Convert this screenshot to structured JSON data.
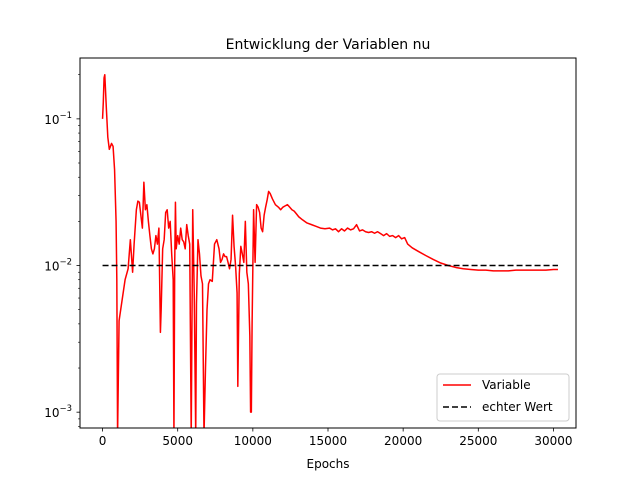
{
  "chart_data": {
    "type": "line",
    "title": "Entwicklung der Variablen nu",
    "xlabel": "Epochs",
    "ylabel": "",
    "yscale": "log",
    "xlim": [
      -1500,
      31500
    ],
    "ylim": [
      0.00078,
      0.26
    ],
    "x_ticks": [
      0,
      5000,
      10000,
      15000,
      20000,
      25000,
      30000
    ],
    "x_tick_labels": [
      "0",
      "5000",
      "10000",
      "15000",
      "20000",
      "25000",
      "30000"
    ],
    "y_ticks": [
      0.001,
      0.01,
      0.1
    ],
    "y_tick_labels": [
      {
        "base": "10",
        "exp": "−3"
      },
      {
        "base": "10",
        "exp": "−2"
      },
      {
        "base": "10",
        "exp": "−1"
      }
    ],
    "grid": false,
    "legend_position": "lower right",
    "series": [
      {
        "name": "Variable",
        "color": "#ff0000",
        "style": "solid",
        "points": [
          [
            0,
            0.1
          ],
          [
            50,
            0.13
          ],
          [
            100,
            0.19
          ],
          [
            150,
            0.2
          ],
          [
            250,
            0.12
          ],
          [
            350,
            0.075
          ],
          [
            450,
            0.062
          ],
          [
            600,
            0.068
          ],
          [
            700,
            0.065
          ],
          [
            800,
            0.045
          ],
          [
            900,
            0.02
          ],
          [
            950,
            0.008
          ],
          [
            1000,
            0.0007
          ],
          [
            1100,
            0.0042
          ],
          [
            1300,
            0.0058
          ],
          [
            1500,
            0.008
          ],
          [
            1700,
            0.0095
          ],
          [
            1850,
            0.015
          ],
          [
            2000,
            0.009
          ],
          [
            2100,
            0.014
          ],
          [
            2250,
            0.024
          ],
          [
            2350,
            0.0275
          ],
          [
            2450,
            0.027
          ],
          [
            2550,
            0.022
          ],
          [
            2650,
            0.018
          ],
          [
            2750,
            0.037
          ],
          [
            2850,
            0.024
          ],
          [
            2950,
            0.026
          ],
          [
            3050,
            0.02
          ],
          [
            3150,
            0.016
          ],
          [
            3250,
            0.013
          ],
          [
            3350,
            0.012
          ],
          [
            3450,
            0.013
          ],
          [
            3550,
            0.016
          ],
          [
            3650,
            0.014
          ],
          [
            3750,
            0.018
          ],
          [
            3850,
            0.0035
          ],
          [
            3900,
            0.005
          ],
          [
            4000,
            0.013
          ],
          [
            4100,
            0.015
          ],
          [
            4200,
            0.023
          ],
          [
            4300,
            0.024
          ],
          [
            4400,
            0.018
          ],
          [
            4500,
            0.02
          ],
          [
            4600,
            0.012
          ],
          [
            4700,
            0.008
          ],
          [
            4750,
            0.0007
          ],
          [
            4800,
            0.01
          ],
          [
            4850,
            0.027
          ],
          [
            4900,
            0.013
          ],
          [
            5000,
            0.016
          ],
          [
            5100,
            0.014
          ],
          [
            5200,
            0.018
          ],
          [
            5300,
            0.015
          ],
          [
            5400,
            0.0145
          ],
          [
            5500,
            0.013
          ],
          [
            5600,
            0.019
          ],
          [
            5700,
            0.016
          ],
          [
            5800,
            0.014
          ],
          [
            5900,
            0.0007
          ],
          [
            6000,
            0.024
          ],
          [
            6100,
            0.0065
          ],
          [
            6200,
            0.0007
          ],
          [
            6250,
            0.0055
          ],
          [
            6350,
            0.015
          ],
          [
            6450,
            0.012
          ],
          [
            6550,
            0.0085
          ],
          [
            6650,
            0.0075
          ],
          [
            6750,
            0.0007
          ],
          [
            6850,
            0.002
          ],
          [
            6950,
            0.005
          ],
          [
            7050,
            0.0075
          ],
          [
            7150,
            0.008
          ],
          [
            7300,
            0.0078
          ],
          [
            7450,
            0.014
          ],
          [
            7600,
            0.015
          ],
          [
            7750,
            0.013
          ],
          [
            7850,
            0.0105
          ],
          [
            7950,
            0.011
          ],
          [
            8050,
            0.012
          ],
          [
            8150,
            0.0115
          ],
          [
            8250,
            0.0115
          ],
          [
            8350,
            0.0105
          ],
          [
            8450,
            0.0095
          ],
          [
            8550,
            0.011
          ],
          [
            8650,
            0.022
          ],
          [
            8750,
            0.0135
          ],
          [
            8850,
            0.01
          ],
          [
            8950,
            0.0065
          ],
          [
            9000,
            0.0015
          ],
          [
            9100,
            0.0088
          ],
          [
            9200,
            0.0135
          ],
          [
            9300,
            0.012
          ],
          [
            9400,
            0.0105
          ],
          [
            9500,
            0.02
          ],
          [
            9600,
            0.009
          ],
          [
            9700,
            0.0075
          ],
          [
            9800,
            0.0033
          ],
          [
            9850,
            0.001
          ],
          [
            9900,
            0.001
          ],
          [
            9950,
            0.004
          ],
          [
            10050,
            0.024
          ],
          [
            10150,
            0.0105
          ],
          [
            10250,
            0.026
          ],
          [
            10350,
            0.025
          ],
          [
            10450,
            0.023
          ],
          [
            10550,
            0.018
          ],
          [
            10650,
            0.017
          ],
          [
            10750,
            0.022
          ],
          [
            10850,
            0.025
          ],
          [
            10950,
            0.028
          ],
          [
            11050,
            0.032
          ],
          [
            11150,
            0.031
          ],
          [
            11300,
            0.0285
          ],
          [
            11500,
            0.026
          ],
          [
            11700,
            0.025
          ],
          [
            11850,
            0.024
          ],
          [
            12000,
            0.025
          ],
          [
            12150,
            0.0255
          ],
          [
            12300,
            0.026
          ],
          [
            12450,
            0.025
          ],
          [
            12600,
            0.024
          ],
          [
            12750,
            0.0235
          ],
          [
            12900,
            0.0225
          ],
          [
            13050,
            0.0215
          ],
          [
            13300,
            0.0205
          ],
          [
            13600,
            0.0195
          ],
          [
            13900,
            0.019
          ],
          [
            14200,
            0.0185
          ],
          [
            14500,
            0.018
          ],
          [
            14800,
            0.0178
          ],
          [
            15100,
            0.018
          ],
          [
            15300,
            0.0175
          ],
          [
            15500,
            0.0178
          ],
          [
            15700,
            0.017
          ],
          [
            15900,
            0.0178
          ],
          [
            16100,
            0.0172
          ],
          [
            16300,
            0.018
          ],
          [
            16500,
            0.0175
          ],
          [
            16700,
            0.0178
          ],
          [
            16900,
            0.019
          ],
          [
            17100,
            0.0172
          ],
          [
            17300,
            0.0175
          ],
          [
            17500,
            0.017
          ],
          [
            17700,
            0.0168
          ],
          [
            17900,
            0.017
          ],
          [
            18100,
            0.0166
          ],
          [
            18300,
            0.017
          ],
          [
            18500,
            0.0165
          ],
          [
            18700,
            0.016
          ],
          [
            18900,
            0.0165
          ],
          [
            19100,
            0.0158
          ],
          [
            19300,
            0.016
          ],
          [
            19500,
            0.0155
          ],
          [
            19700,
            0.016
          ],
          [
            19900,
            0.0152
          ],
          [
            20100,
            0.0155
          ],
          [
            20300,
            0.014
          ],
          [
            20600,
            0.0132
          ],
          [
            21000,
            0.0125
          ],
          [
            21500,
            0.0117
          ],
          [
            22000,
            0.011
          ],
          [
            22500,
            0.0104
          ],
          [
            23000,
            0.01
          ],
          [
            23500,
            0.0097
          ],
          [
            24000,
            0.0095
          ],
          [
            24500,
            0.0094
          ],
          [
            25000,
            0.0093
          ],
          [
            25500,
            0.0093
          ],
          [
            26000,
            0.0092
          ],
          [
            26500,
            0.0092
          ],
          [
            27000,
            0.0092
          ],
          [
            27500,
            0.0093
          ],
          [
            28000,
            0.0093
          ],
          [
            28500,
            0.0093
          ],
          [
            29000,
            0.0093
          ],
          [
            29500,
            0.0093
          ],
          [
            30000,
            0.0094
          ],
          [
            30300,
            0.0094
          ]
        ]
      },
      {
        "name": "echter Wert",
        "color": "#000000",
        "style": "dashed",
        "points": [
          [
            0,
            0.01
          ],
          [
            30300,
            0.01
          ]
        ]
      }
    ]
  }
}
